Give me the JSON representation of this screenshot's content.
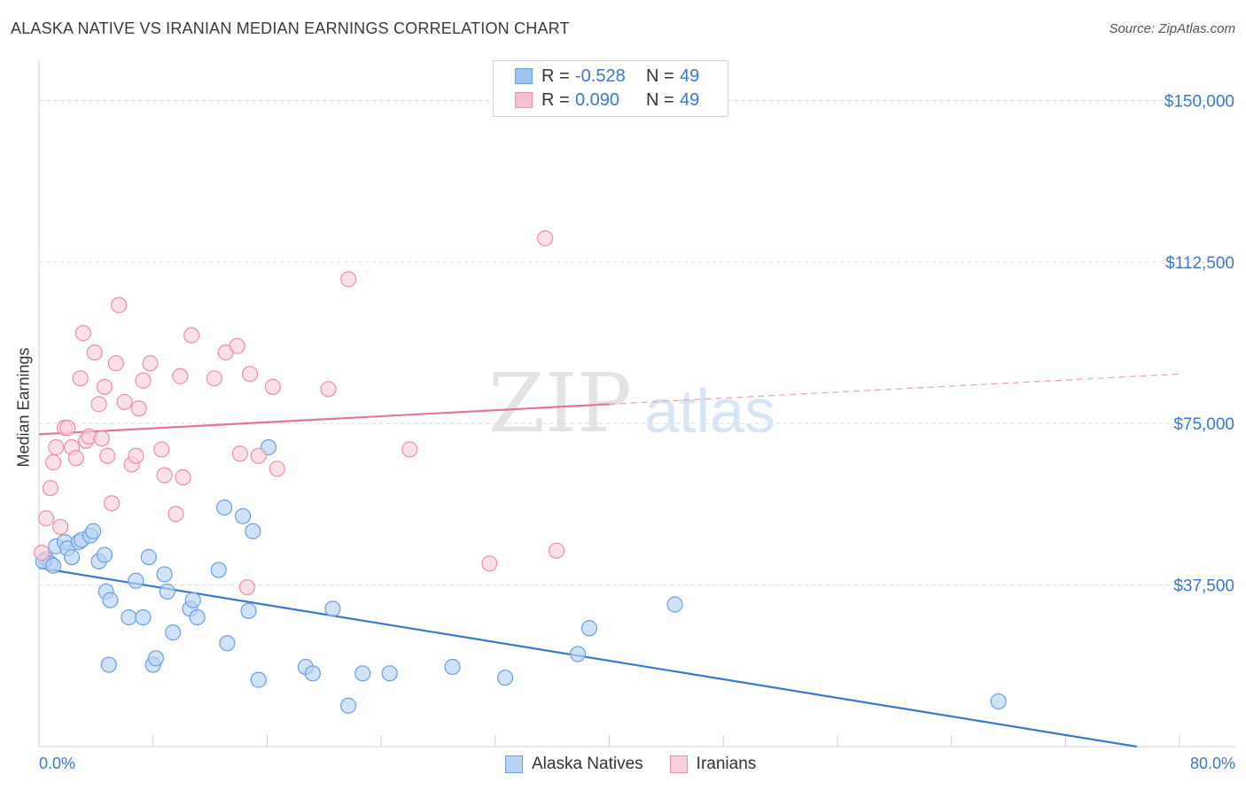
{
  "title": "ALASKA NATIVE VS IRANIAN MEDIAN EARNINGS CORRELATION CHART",
  "source": "Source: ZipAtlas.com",
  "watermark": {
    "zip": "ZIP",
    "atlas": "atlas"
  },
  "legend_top": [
    {
      "r_label": "R =",
      "r_value": "-0.528",
      "n_label": "N =",
      "n_value": "49",
      "color": "#9ec3f0",
      "border": "#6b9fe0"
    },
    {
      "r_label": "R =",
      "r_value": "0.090",
      "n_label": "N =",
      "n_value": "49",
      "color": "#f8bfd0",
      "border": "#eb8fab"
    }
  ],
  "legend_bottom": [
    {
      "label": "Alaska Natives",
      "color": "#b7d2f5",
      "border": "#6b9fe0"
    },
    {
      "label": "Iranians",
      "color": "#fbd0dc",
      "border": "#eb8fab"
    }
  ],
  "x_axis": {
    "min_label": "0.0%",
    "max_label": "80.0%"
  },
  "chart_data": {
    "type": "scatter",
    "title": "ALASKA NATIVE VS IRANIAN MEDIAN EARNINGS CORRELATION CHART",
    "xlabel": "",
    "ylabel": "Median Earnings",
    "xlim": [
      0,
      80
    ],
    "ylim": [
      0,
      157500
    ],
    "yticks": [
      37500,
      75000,
      112500,
      150000
    ],
    "ytick_labels": [
      "$37,500",
      "$75,000",
      "$112,500",
      "$150,000"
    ],
    "grid": true,
    "series": [
      {
        "name": "Alaska Natives",
        "color": "#6b9fe0",
        "fill": "#b7d2f5",
        "trend": {
          "x": [
            0,
            77
          ],
          "y": [
            41500,
            0
          ]
        },
        "points": [
          [
            0.5,
            43500
          ],
          [
            0.8,
            42500
          ],
          [
            1.2,
            46500
          ],
          [
            1.8,
            47500
          ],
          [
            2.0,
            46000
          ],
          [
            2.3,
            44000
          ],
          [
            2.8,
            47500
          ],
          [
            3.0,
            48000
          ],
          [
            3.6,
            49000
          ],
          [
            3.8,
            50000
          ],
          [
            4.2,
            43000
          ],
          [
            4.6,
            44500
          ],
          [
            4.7,
            36000
          ],
          [
            5.0,
            34000
          ],
          [
            4.9,
            19000
          ],
          [
            6.3,
            30000
          ],
          [
            6.8,
            38500
          ],
          [
            7.3,
            30000
          ],
          [
            7.7,
            44000
          ],
          [
            8.0,
            19000
          ],
          [
            8.2,
            20500
          ],
          [
            8.8,
            40000
          ],
          [
            9.0,
            36000
          ],
          [
            9.4,
            26500
          ],
          [
            10.6,
            32000
          ],
          [
            10.8,
            34000
          ],
          [
            11.1,
            30000
          ],
          [
            12.6,
            41000
          ],
          [
            13.0,
            55500
          ],
          [
            13.2,
            24000
          ],
          [
            14.3,
            53500
          ],
          [
            14.7,
            31500
          ],
          [
            15.0,
            50000
          ],
          [
            15.4,
            15500
          ],
          [
            16.1,
            69500
          ],
          [
            18.7,
            18500
          ],
          [
            19.2,
            17000
          ],
          [
            20.6,
            32000
          ],
          [
            21.7,
            9500
          ],
          [
            22.7,
            17000
          ],
          [
            24.6,
            17000
          ],
          [
            29.0,
            18500
          ],
          [
            32.7,
            16000
          ],
          [
            37.8,
            21500
          ],
          [
            38.6,
            27500
          ],
          [
            44.6,
            33000
          ],
          [
            67.3,
            10500
          ],
          [
            0.3,
            43000
          ],
          [
            1.0,
            42000
          ]
        ]
      },
      {
        "name": "Iranians",
        "color": "#eb8fab",
        "fill": "#fbd0dc",
        "trend": {
          "x": [
            0,
            40
          ],
          "y": [
            72500,
            79500
          ]
        },
        "trend_dashed": {
          "x": [
            40,
            80
          ],
          "y": [
            79500,
            86500
          ]
        },
        "points": [
          [
            0.2,
            45000
          ],
          [
            0.5,
            53000
          ],
          [
            0.8,
            60000
          ],
          [
            1.0,
            66000
          ],
          [
            1.2,
            69500
          ],
          [
            1.5,
            51000
          ],
          [
            1.8,
            74000
          ],
          [
            2.0,
            74000
          ],
          [
            2.3,
            69500
          ],
          [
            2.6,
            67000
          ],
          [
            2.9,
            85500
          ],
          [
            3.1,
            96000
          ],
          [
            3.3,
            71000
          ],
          [
            3.5,
            72000
          ],
          [
            3.9,
            91500
          ],
          [
            4.2,
            79500
          ],
          [
            4.4,
            71500
          ],
          [
            4.6,
            83500
          ],
          [
            4.8,
            67500
          ],
          [
            5.1,
            56500
          ],
          [
            5.4,
            89000
          ],
          [
            5.6,
            102500
          ],
          [
            6.0,
            80000
          ],
          [
            6.5,
            65500
          ],
          [
            6.8,
            67500
          ],
          [
            7.0,
            78500
          ],
          [
            7.3,
            85000
          ],
          [
            7.8,
            89000
          ],
          [
            8.6,
            69000
          ],
          [
            8.8,
            63000
          ],
          [
            9.6,
            54000
          ],
          [
            9.9,
            86000
          ],
          [
            10.1,
            62500
          ],
          [
            10.7,
            95500
          ],
          [
            12.3,
            85500
          ],
          [
            13.1,
            91500
          ],
          [
            13.9,
            93000
          ],
          [
            14.1,
            68000
          ],
          [
            14.6,
            37000
          ],
          [
            14.8,
            86500
          ],
          [
            15.4,
            67500
          ],
          [
            16.4,
            83500
          ],
          [
            16.7,
            64500
          ],
          [
            20.3,
            83000
          ],
          [
            21.7,
            108500
          ],
          [
            26.0,
            69000
          ],
          [
            31.6,
            42500
          ],
          [
            35.5,
            118000
          ],
          [
            36.3,
            45500
          ]
        ]
      }
    ]
  }
}
